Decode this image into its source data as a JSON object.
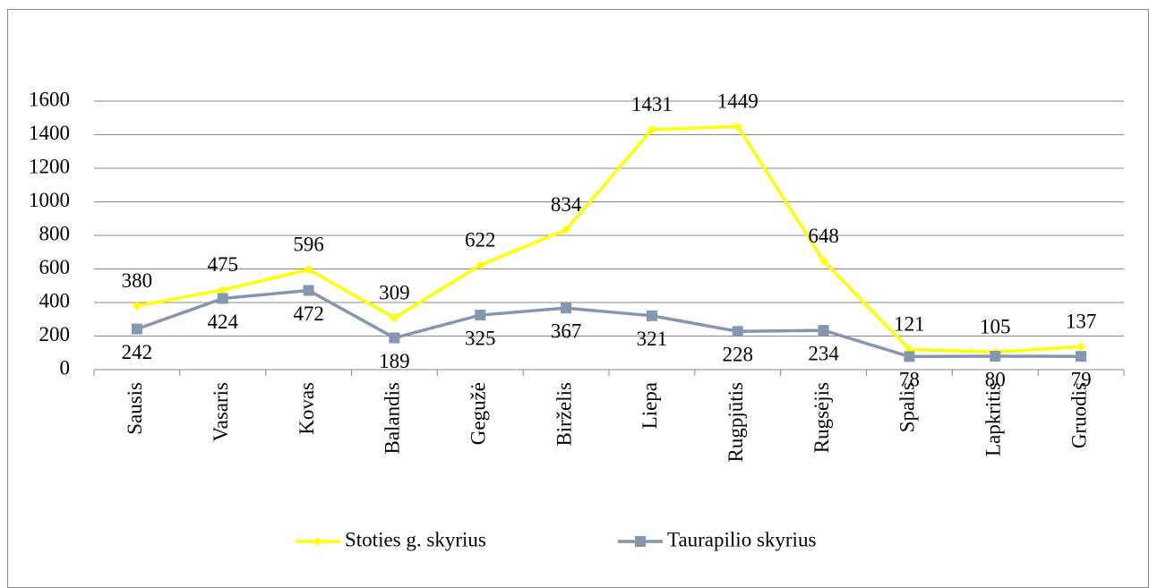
{
  "chart_data": {
    "type": "line",
    "categories": [
      "Sausis",
      "Vasaris",
      "Kovas",
      "Balandis",
      "Gegužė",
      "Birželis",
      "Liepa",
      "Rugpjūtis",
      "Rugsėjis",
      "Spalis",
      "Lapkritis",
      "Gruodis"
    ],
    "series": [
      {
        "name": "Stoties g. skyrius",
        "color": "#ffff00",
        "marker": "diamond",
        "values": [
          380,
          475,
          596,
          309,
          622,
          834,
          1431,
          1449,
          648,
          121,
          105,
          137
        ]
      },
      {
        "name": "Taurapilio skyrius",
        "color": "#8496b0",
        "marker": "square",
        "values": [
          242,
          424,
          472,
          189,
          325,
          367,
          321,
          228,
          234,
          78,
          80,
          79
        ]
      }
    ],
    "ylim": [
      0,
      1600
    ],
    "yticks": [
      0,
      200,
      400,
      600,
      800,
      1000,
      1200,
      1400,
      1600
    ],
    "grid": true,
    "legend": "bottom"
  }
}
